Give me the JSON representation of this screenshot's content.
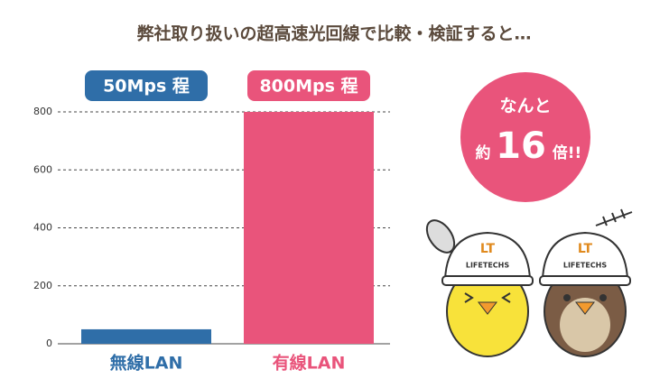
{
  "chart_data": {
    "type": "bar",
    "title": "弊社取り扱いの超高速光回線で比較・検証すると…",
    "categories": [
      "無線LAN",
      "有線LAN"
    ],
    "values": [
      50,
      800
    ],
    "value_labels": [
      "50Mps 程",
      "800Mps 程"
    ],
    "colors": [
      "#2f6ea8",
      "#e9547b"
    ],
    "ylim": [
      0,
      800
    ],
    "yticks": [
      0,
      200,
      400,
      600,
      800
    ],
    "grid": true,
    "annotation": [
      "なんと",
      "約",
      "16",
      "倍!!"
    ],
    "illustration": {
      "logo": "LT",
      "brand": "LIFETECHS"
    }
  }
}
